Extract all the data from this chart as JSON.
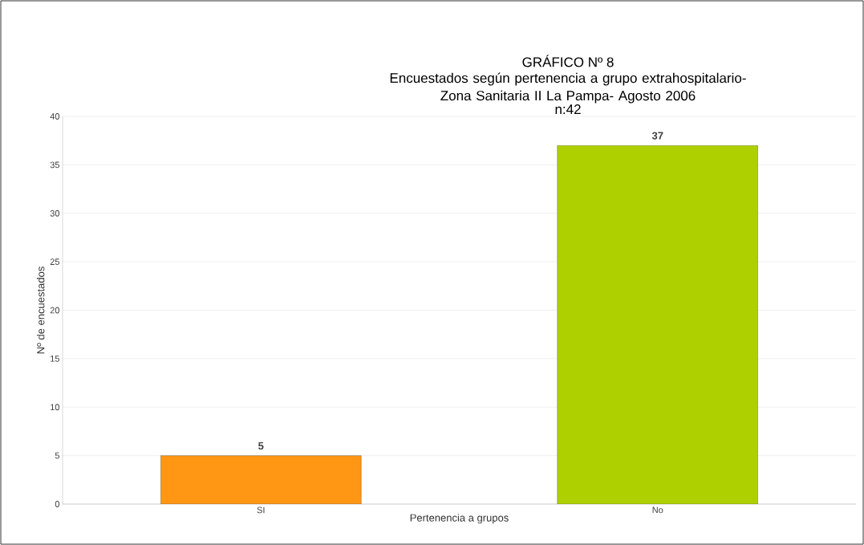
{
  "chart_data": {
    "type": "bar",
    "title": "GRÁFICO Nº 8",
    "subtitle": "Encuestados según pertenencia a grupo extrahospitalario- Zona Sanitaria II La Pampa- Agosto 2006",
    "annotations": [
      "n:42"
    ],
    "xlabel": "Pertenencia a grupos",
    "ylabel": "Nº de encuestados",
    "categories": [
      "SI",
      "No"
    ],
    "values": [
      5,
      37
    ],
    "colors": [
      "#ff9614",
      "#afd000"
    ],
    "ylim": [
      0,
      40
    ],
    "yticks": [
      0,
      5,
      10,
      15,
      20,
      25,
      30,
      35,
      40
    ],
    "grid": "y",
    "data_labels": true
  }
}
